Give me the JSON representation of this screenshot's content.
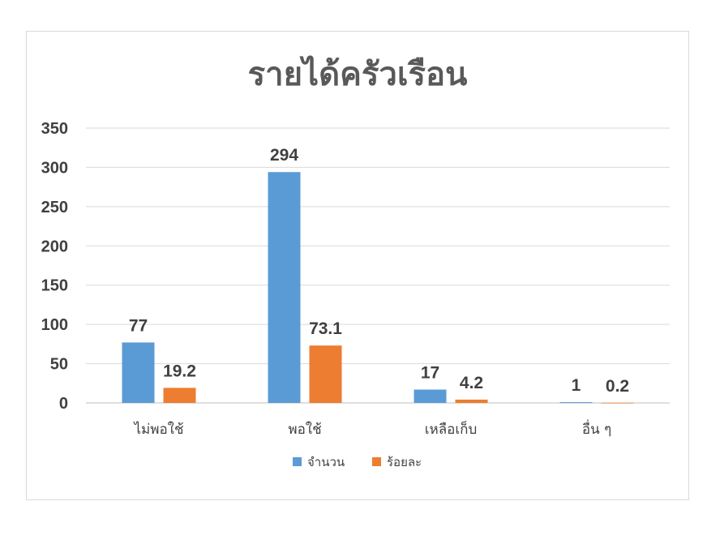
{
  "chart_data": {
    "type": "bar",
    "title": "รายได้ครัวเรือน",
    "categories": [
      "ไม่พอใช้",
      "พอใช้",
      "เหลือเก็บ",
      "อื่น ๆ"
    ],
    "series": [
      {
        "name": "จำนวน",
        "values": [
          77,
          294,
          17,
          1
        ],
        "color": "#5b9bd5"
      },
      {
        "name": "ร้อยละ",
        "values": [
          19.2,
          73.1,
          4.2,
          0.2
        ],
        "color": "#ed7d31"
      }
    ],
    "ylim": [
      0,
      350
    ],
    "yticks": [
      0,
      50,
      100,
      150,
      200,
      250,
      300,
      350
    ],
    "grid": true,
    "legend_position": "bottom",
    "data_labels": true
  }
}
